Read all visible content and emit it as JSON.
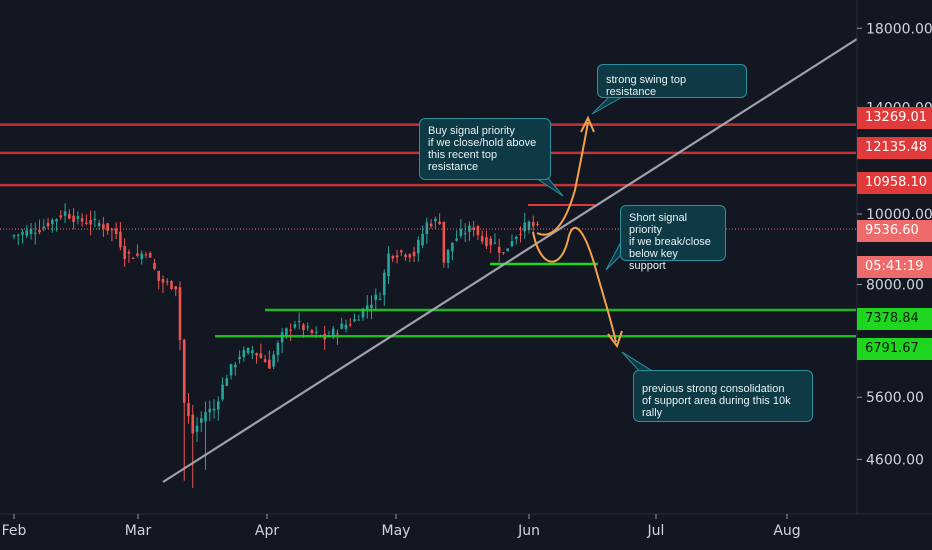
{
  "chart_data": {
    "type": "candlestick",
    "x_ticks": [
      "Feb",
      "Mar",
      "Apr",
      "May",
      "Jun",
      "Jul",
      "Aug"
    ],
    "y_ticks": [
      "18000.00",
      "14000.00",
      "10000.00",
      "8000.00",
      "5600.00",
      "4600.00"
    ],
    "y_scale": "log",
    "horizontal_levels": [
      {
        "value": "13269.01",
        "color": "#e03a3a",
        "kind": "resistance"
      },
      {
        "value": "12135.48",
        "color": "#e03a3a",
        "kind": "resistance"
      },
      {
        "value": "10958.10",
        "color": "#e03a3a",
        "kind": "resistance"
      },
      {
        "value": "7378.84",
        "color": "#1fd61f",
        "kind": "support"
      },
      {
        "value": "6791.67",
        "color": "#1fd61f",
        "kind": "support"
      }
    ],
    "last_price": {
      "value": "9536.60",
      "color": "#ef6b6b"
    },
    "countdown": {
      "value": "05:41:19",
      "color": "#ef6b6b"
    },
    "annotations": [
      "strong swing top resistance",
      "Buy signal priority\nif we close/hold above\nthis recent top resistance",
      "Short signal priority\nif we break/close\nbelow key support",
      "previous strong consolidation\nof support area during this 10k rally"
    ],
    "up_color": "#26a69a",
    "down_color": "#ef5350",
    "trendline_color": "#b0b0b8",
    "projection_color": "#f5a14a"
  }
}
